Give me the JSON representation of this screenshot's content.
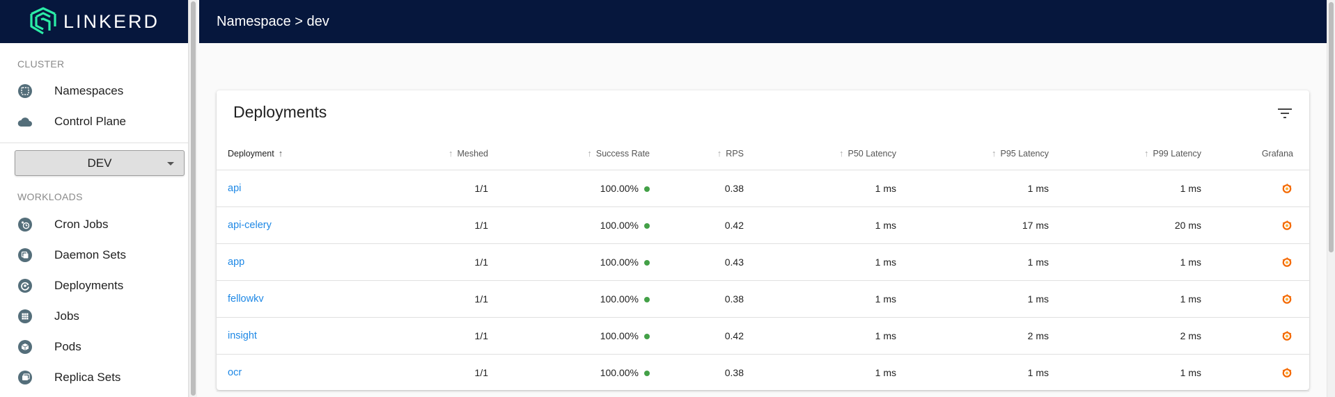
{
  "brand": {
    "name": "LINKERD"
  },
  "sidebar": {
    "cluster_label": "CLUSTER",
    "cluster_items": [
      {
        "label": "Namespaces",
        "icon": "namespace-icon"
      },
      {
        "label": "Control Plane",
        "icon": "cloud-icon"
      }
    ],
    "namespace_select": {
      "value": "DEV"
    },
    "workloads_label": "WORKLOADS",
    "workload_items": [
      {
        "label": "Cron Jobs",
        "icon": "cronjob-icon"
      },
      {
        "label": "Daemon Sets",
        "icon": "daemonset-icon"
      },
      {
        "label": "Deployments",
        "icon": "deployment-icon"
      },
      {
        "label": "Jobs",
        "icon": "job-icon"
      },
      {
        "label": "Pods",
        "icon": "pod-icon"
      },
      {
        "label": "Replica Sets",
        "icon": "replicaset-icon"
      }
    ]
  },
  "header": {
    "breadcrumb": "Namespace > dev"
  },
  "card": {
    "title": "Deployments",
    "columns": [
      "Deployment",
      "Meshed",
      "Success Rate",
      "RPS",
      "P50 Latency",
      "P95 Latency",
      "P99 Latency",
      "Grafana"
    ],
    "rows": [
      {
        "name": "api",
        "meshed": "1/1",
        "success": "100.00%",
        "rps": "0.38",
        "p50": "1 ms",
        "p95": "1 ms",
        "p99": "1 ms"
      },
      {
        "name": "api-celery",
        "meshed": "1/1",
        "success": "100.00%",
        "rps": "0.42",
        "p50": "1 ms",
        "p95": "17 ms",
        "p99": "20 ms"
      },
      {
        "name": "app",
        "meshed": "1/1",
        "success": "100.00%",
        "rps": "0.43",
        "p50": "1 ms",
        "p95": "1 ms",
        "p99": "1 ms"
      },
      {
        "name": "fellowkv",
        "meshed": "1/1",
        "success": "100.00%",
        "rps": "0.38",
        "p50": "1 ms",
        "p95": "1 ms",
        "p99": "1 ms"
      },
      {
        "name": "insight",
        "meshed": "1/1",
        "success": "100.00%",
        "rps": "0.42",
        "p50": "1 ms",
        "p95": "2 ms",
        "p99": "2 ms"
      },
      {
        "name": "ocr",
        "meshed": "1/1",
        "success": "100.00%",
        "rps": "0.38",
        "p50": "1 ms",
        "p95": "1 ms",
        "p99": "1 ms"
      }
    ]
  },
  "colors": {
    "navy": "#06173d",
    "link": "#1e88e5",
    "success": "#43a047",
    "grafana": "#f46800",
    "teal": "#2beda7"
  }
}
